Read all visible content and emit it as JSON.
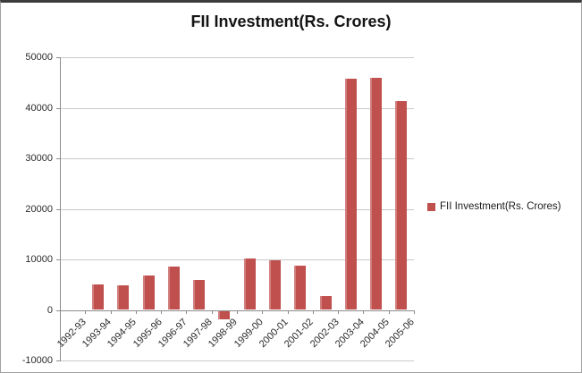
{
  "chart_data": {
    "type": "bar",
    "title": "FII Investment(Rs. Crores)",
    "xlabel": "",
    "ylabel": "",
    "categories": [
      "1992-93",
      "1993-94",
      "1994-95",
      "1995-96",
      "1996-97",
      "1997-98",
      "1998-99",
      "1999-00",
      "2000-01",
      "2001-02",
      "2002-03",
      "2003-04",
      "2004-05",
      "2005-06"
    ],
    "series": [
      {
        "name": "FII Investment(Rs. Crores)",
        "color": "#C0504D",
        "values": [
          0,
          5100,
          4800,
          6900,
          8600,
          5900,
          -1600,
          10100,
          9900,
          8700,
          2700,
          45800,
          45900,
          41400
        ]
      }
    ],
    "ylim": [
      -10000,
      50000
    ],
    "ytick_values": [
      50000,
      40000,
      30000,
      20000,
      10000,
      0,
      -10000
    ],
    "ytick_labels": [
      "50000",
      "40000",
      "30000",
      "20000",
      "10000",
      "0",
      "-10000"
    ],
    "grid": true,
    "legend_position": "right-middle",
    "colors": {
      "bar": "#C0504D",
      "gridline": "#C9C9C9",
      "axis": "#8C8C8C",
      "text": "#2B2B2B",
      "title": "#141414"
    }
  }
}
